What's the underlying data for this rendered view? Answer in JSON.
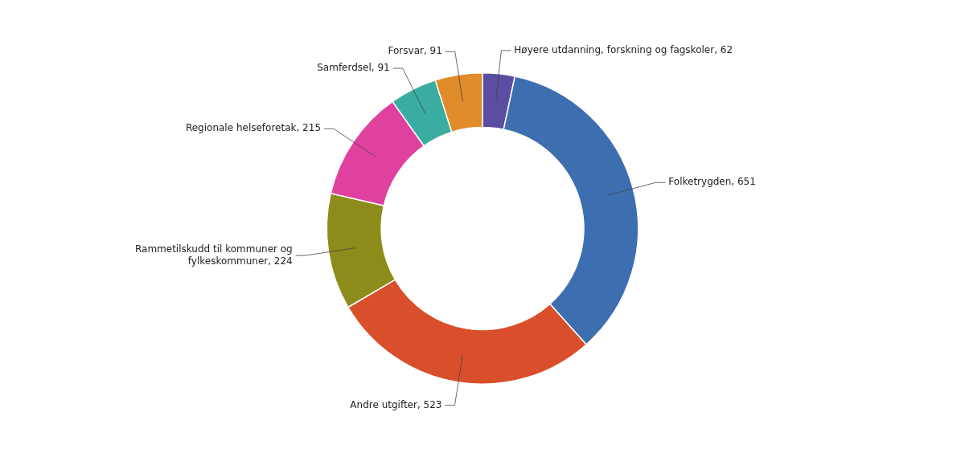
{
  "chart_data": {
    "type": "doughnut",
    "categories": [
      "Høyere utdanning, forskning og fagskoler, 62",
      "Folketrygden, 651",
      "Andre utgifter, 523",
      "Rammetilskudd til kommuner og\nfylkeskommuner, 224",
      "Regionale helseforetak, 215",
      "Samferdsel, 91",
      "Forsvar, 91"
    ],
    "values": [
      62,
      651,
      523,
      224,
      215,
      91,
      91
    ],
    "colors": [
      "#5b4ea0",
      "#3d6eaf",
      "#d94f2b",
      "#8c8c1a",
      "#e0419e",
      "#3aada0",
      "#e08c2a"
    ]
  }
}
